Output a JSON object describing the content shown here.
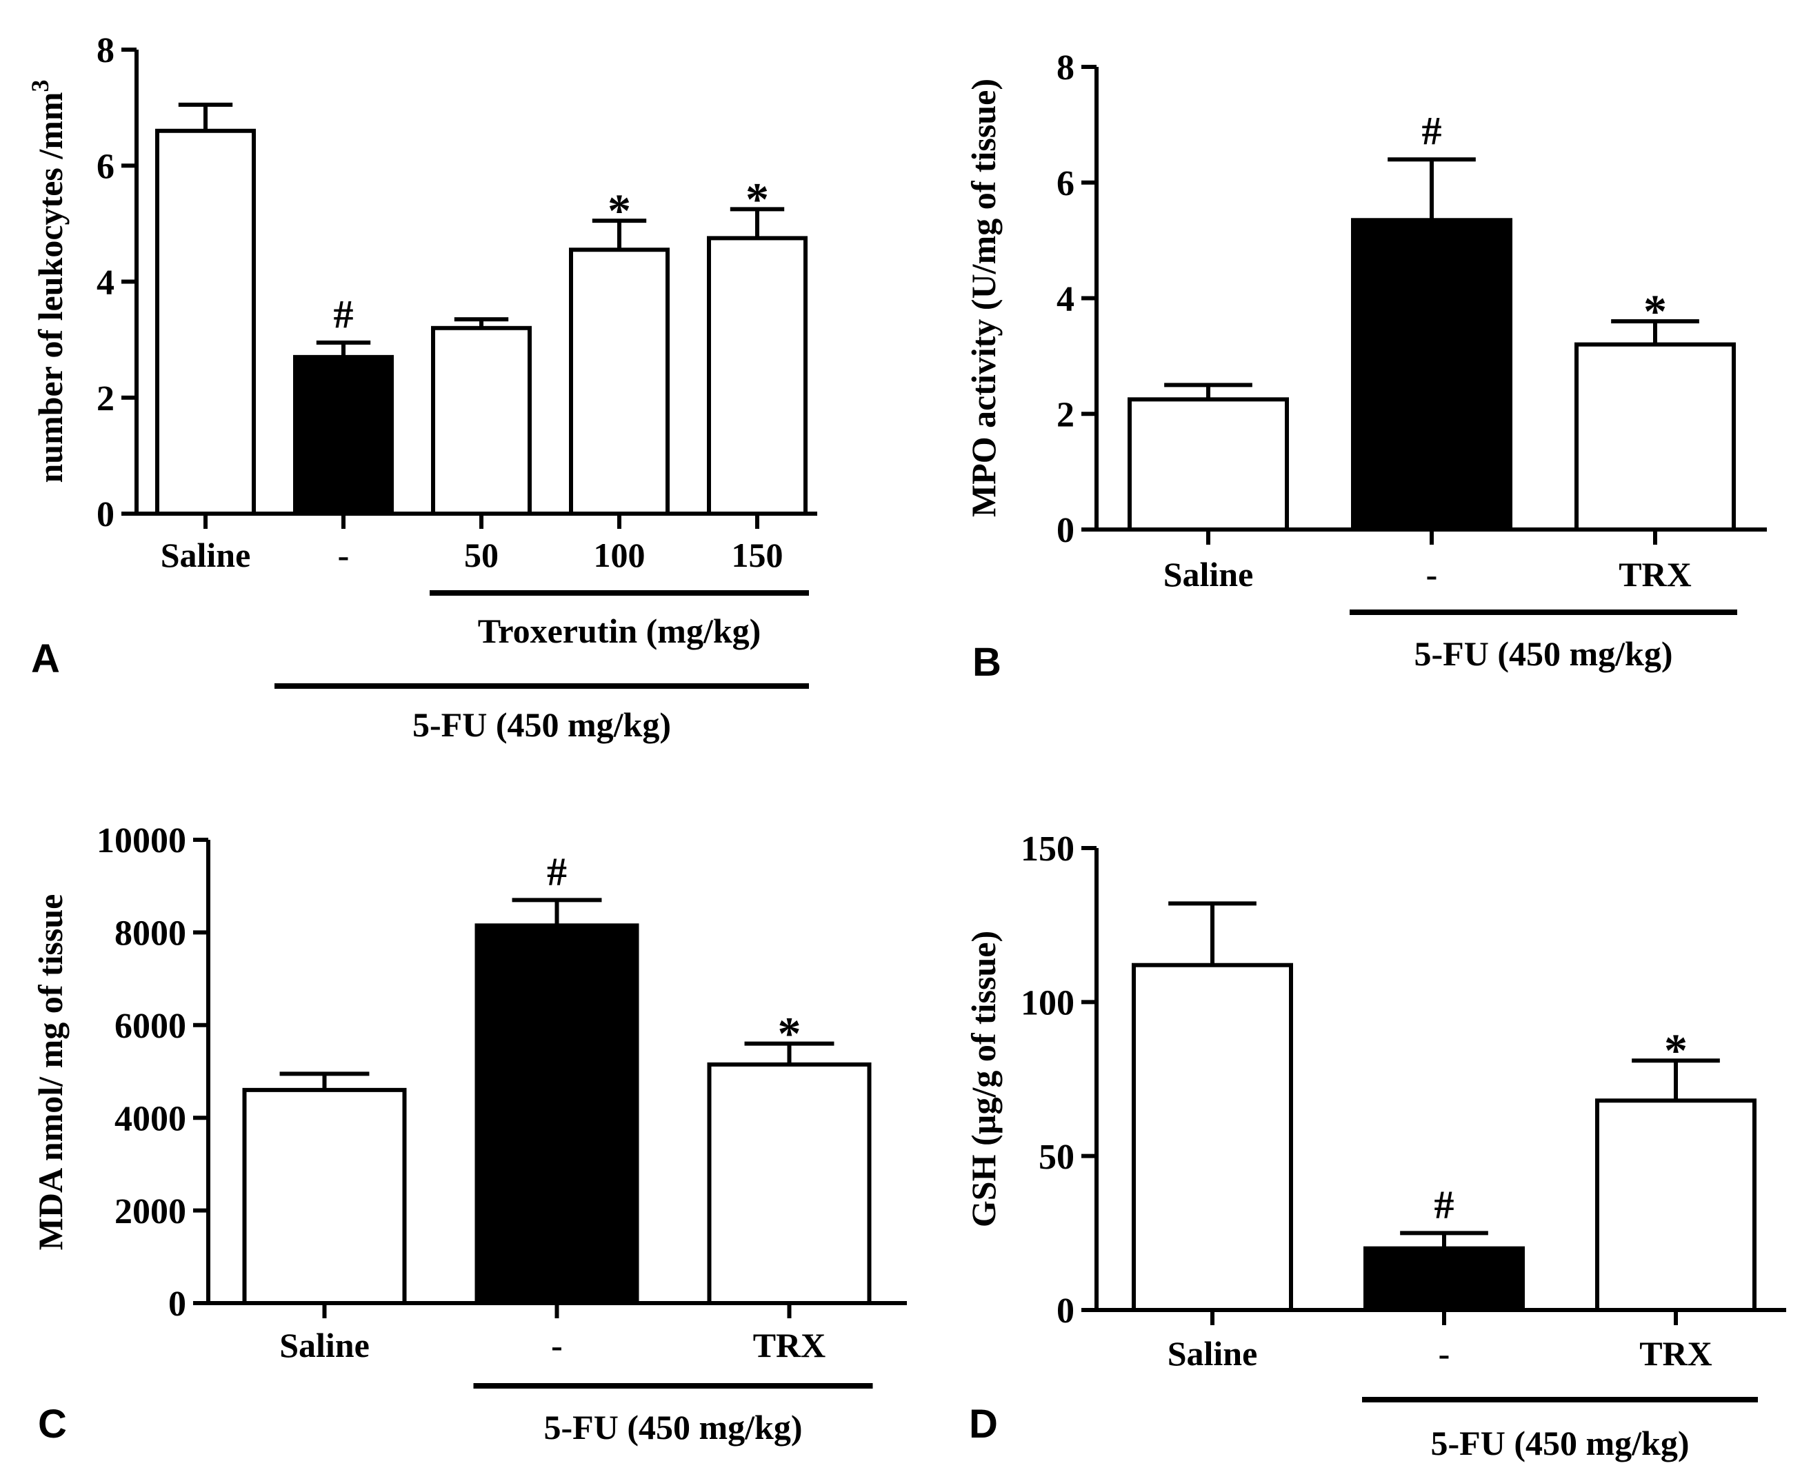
{
  "chart_data": [
    {
      "panel": "A",
      "type": "bar",
      "ylabel": "number of leukocytes /mm",
      "ylabel_sup": "3",
      "ylim": [
        0,
        8
      ],
      "yticks": [
        "0",
        "2",
        "4",
        "6",
        "8"
      ],
      "categories": [
        "Saline",
        "-",
        "50",
        "100",
        "150"
      ],
      "values": [
        6.6,
        2.7,
        3.2,
        4.55,
        4.75
      ],
      "errors": [
        0.45,
        0.25,
        0.15,
        0.5,
        0.5
      ],
      "fills": [
        "#ffffff",
        "#000000",
        "#ffffff",
        "#ffffff",
        "#ffffff"
      ],
      "marks": [
        "",
        "#",
        "",
        "*",
        "*"
      ],
      "group_labels": [
        {
          "text": "Troxerutin (mg/kg)",
          "from": 2,
          "to": 4,
          "level": 1
        },
        {
          "text": "5-FU (450 mg/kg)",
          "from": 1,
          "to": 4,
          "level": 2
        }
      ]
    },
    {
      "panel": "B",
      "type": "bar",
      "ylabel": "MPO activity (U/mg of tissue)",
      "ylabel_sup": "",
      "ylim": [
        0,
        8
      ],
      "yticks": [
        "0",
        "2",
        "4",
        "6",
        "8"
      ],
      "categories": [
        "Saline",
        "-",
        "TRX"
      ],
      "values": [
        2.25,
        5.35,
        3.2
      ],
      "errors": [
        0.25,
        1.05,
        0.4
      ],
      "fills": [
        "#ffffff",
        "#000000",
        "#ffffff"
      ],
      "marks": [
        "",
        "#",
        "*"
      ],
      "group_labels": [
        {
          "text": "5-FU (450 mg/kg)",
          "from": 1,
          "to": 2,
          "level": 1
        }
      ]
    },
    {
      "panel": "C",
      "type": "bar",
      "ylabel": "MDA nmol/ mg of tissue",
      "ylabel_sup": "",
      "ylim": [
        0,
        10000
      ],
      "yticks": [
        "0",
        "2000",
        "4000",
        "6000",
        "8000",
        "10000"
      ],
      "categories": [
        "Saline",
        "-",
        "TRX"
      ],
      "values": [
        4600,
        8150,
        5150
      ],
      "errors": [
        350,
        550,
        450
      ],
      "fills": [
        "#ffffff",
        "#000000",
        "#ffffff"
      ],
      "marks": [
        "",
        "#",
        "*"
      ],
      "group_labels": [
        {
          "text": "5-FU (450 mg/kg)",
          "from": 1,
          "to": 2,
          "level": 1
        }
      ]
    },
    {
      "panel": "D",
      "type": "bar",
      "ylabel": "GSH (µg/g of tissue)",
      "ylabel_sup": "",
      "ylim": [
        0,
        150
      ],
      "yticks": [
        "0",
        "50",
        "100",
        "150"
      ],
      "categories": [
        "Saline",
        "-",
        "TRX"
      ],
      "values": [
        112,
        20,
        68
      ],
      "errors": [
        20,
        5,
        13
      ],
      "fills": [
        "#ffffff",
        "#000000",
        "#ffffff"
      ],
      "marks": [
        "",
        "#",
        "*"
      ],
      "group_labels": [
        {
          "text": "5-FU (450 mg/kg)",
          "from": 1,
          "to": 2,
          "level": 1
        }
      ]
    }
  ]
}
